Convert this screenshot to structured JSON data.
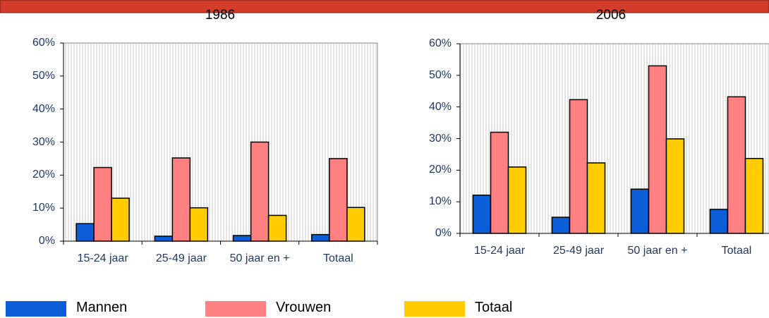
{
  "chart_data": [
    {
      "type": "bar",
      "title": "1986",
      "categories": [
        "15-24 jaar",
        "25-49 jaar",
        "50 jaar en +",
        "Totaal"
      ],
      "series": [
        {
          "name": "Mannen",
          "color": "#0b5ed7",
          "values": [
            5.3,
            1.5,
            1.7,
            2.0
          ]
        },
        {
          "name": "Vrouwen",
          "color": "#ff8080",
          "values": [
            22.3,
            25.2,
            30.0,
            25.0
          ]
        },
        {
          "name": "Totaal",
          "color": "#ffcc00",
          "values": [
            13.0,
            10.1,
            7.8,
            10.2
          ]
        }
      ],
      "ylim": [
        0,
        60
      ],
      "yticks": [
        {
          "value": 0,
          "label": "0%"
        },
        {
          "value": 10,
          "label": "10%"
        },
        {
          "value": 20,
          "label": "20%"
        },
        {
          "value": 30,
          "label": "30%"
        },
        {
          "value": 40,
          "label": "40%"
        },
        {
          "value": 50,
          "label": "50%"
        },
        {
          "value": 60,
          "label": "60%"
        }
      ]
    },
    {
      "type": "bar",
      "title": "2006",
      "categories": [
        "15-24 jaar",
        "25-49 jaar",
        "50 jaar en +",
        "Totaal"
      ],
      "series": [
        {
          "name": "Mannen",
          "color": "#0b5ed7",
          "values": [
            12.1,
            5.1,
            14.0,
            7.6
          ]
        },
        {
          "name": "Vrouwen",
          "color": "#ff8080",
          "values": [
            32.0,
            42.3,
            53.0,
            43.2
          ]
        },
        {
          "name": "Totaal",
          "color": "#ffcc00",
          "values": [
            21.0,
            22.3,
            29.9,
            23.7
          ]
        }
      ],
      "ylim": [
        0,
        60
      ],
      "yticks": [
        {
          "value": 0,
          "label": "0%"
        },
        {
          "value": 10,
          "label": "10%"
        },
        {
          "value": 20,
          "label": "20%"
        },
        {
          "value": 30,
          "label": "30%"
        },
        {
          "value": 40,
          "label": "40%"
        },
        {
          "value": 50,
          "label": "50%"
        },
        {
          "value": 60,
          "label": "60%"
        }
      ]
    }
  ]
}
